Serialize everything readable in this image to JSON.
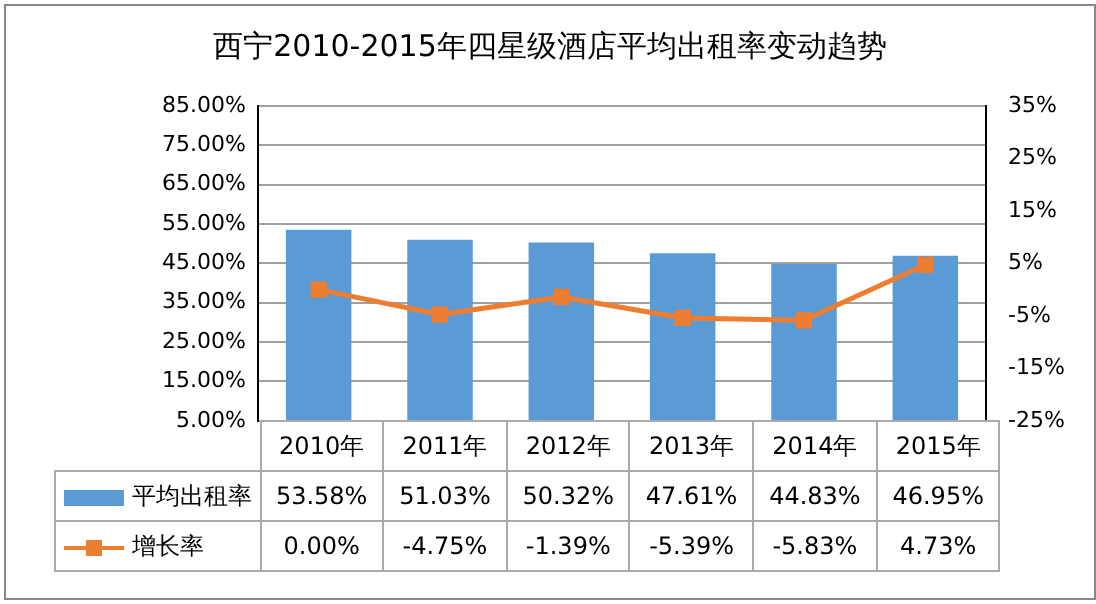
{
  "chart_data": {
    "type": "bar",
    "title": "西宁2010-2015年四星级酒店平均出租率变动趋势",
    "categories": [
      "2010年",
      "2011年",
      "2012年",
      "2013年",
      "2014年",
      "2015年"
    ],
    "series": [
      {
        "name": "平均出租率",
        "color": "#5b9bd5",
        "values": [
          53.58,
          51.03,
          50.32,
          47.61,
          44.83,
          46.95
        ],
        "value_labels": [
          "53.58%",
          "51.03%",
          "50.32%",
          "47.61%",
          "44.83%",
          "46.95%"
        ]
      },
      {
        "name": "增长率",
        "type": "line",
        "axis": "y2",
        "color": "#ed7d31",
        "marker": "square",
        "values": [
          0.0,
          -4.75,
          -1.39,
          -5.39,
          -5.83,
          4.73
        ],
        "value_labels": [
          "0.00%",
          "-4.75%",
          "-1.39%",
          "-5.39%",
          "-5.83%",
          "4.73%"
        ]
      }
    ],
    "ylim": [
      5,
      85
    ],
    "yticks": [
      {
        "value": 5,
        "label": "5.00%"
      },
      {
        "value": 15,
        "label": "15.00%"
      },
      {
        "value": 25,
        "label": "25.00%"
      },
      {
        "value": 35,
        "label": "35.00%"
      },
      {
        "value": 45,
        "label": "45.00%"
      },
      {
        "value": 55,
        "label": "55.00%"
      },
      {
        "value": 65,
        "label": "65.00%"
      },
      {
        "value": 75,
        "label": "75.00%"
      },
      {
        "value": 85,
        "label": "85.00%"
      }
    ],
    "y2lim": [
      -25,
      35
    ],
    "y2ticks": [
      {
        "value": -25,
        "label": "-25%"
      },
      {
        "value": -15,
        "label": "-15%"
      },
      {
        "value": -5,
        "label": "-5%"
      },
      {
        "value": 5,
        "label": "5%"
      },
      {
        "value": 15,
        "label": "15%"
      },
      {
        "value": 25,
        "label": "25%"
      },
      {
        "value": 35,
        "label": "35%"
      }
    ],
    "grid": "y",
    "legend": "bottom",
    "data_labels": true
  }
}
